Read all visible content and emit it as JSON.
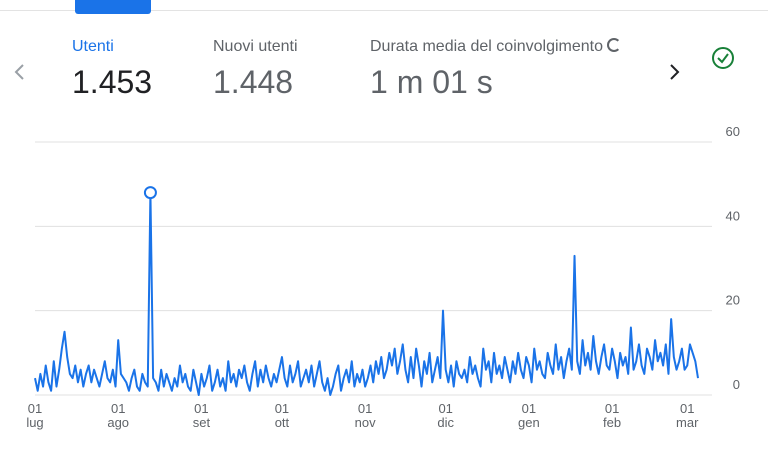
{
  "metrics": [
    {
      "label": "Utenti",
      "value": "1.453"
    },
    {
      "label": "Nuovi utenti",
      "value": "1.448"
    },
    {
      "label": "Durata media del coinvolgimento",
      "value": "1 m 01 s"
    }
  ],
  "chart_data": {
    "type": "line",
    "color": "#1a73e8",
    "grid": true,
    "highlighted_point": 43,
    "ylim": [
      0,
      60
    ],
    "yticks": [
      0,
      20,
      40,
      60
    ],
    "xlim": [
      0,
      247
    ],
    "xticks": [
      {
        "value": 0,
        "label": "01\nlug"
      },
      {
        "value": 31,
        "label": "01\nago"
      },
      {
        "value": 62,
        "label": "01\nset"
      },
      {
        "value": 92,
        "label": "01\nott"
      },
      {
        "value": 123,
        "label": "01\nnov"
      },
      {
        "value": 153,
        "label": "01\ndic"
      },
      {
        "value": 184,
        "label": "01\ngen"
      },
      {
        "value": 215,
        "label": "01\nfeb"
      },
      {
        "value": 243,
        "label": "01\nmar"
      }
    ],
    "values": [
      4,
      1,
      5,
      2,
      7,
      3,
      1,
      8,
      2,
      6,
      11,
      15,
      9,
      5,
      4,
      7,
      3,
      6,
      2,
      5,
      7,
      3,
      6,
      4,
      2,
      5,
      8,
      4,
      3,
      6,
      2,
      13,
      5,
      4,
      3,
      1,
      4,
      6,
      2,
      1,
      5,
      3,
      2,
      48,
      4,
      3,
      1,
      6,
      2,
      5,
      3,
      1,
      4,
      2,
      7,
      3,
      5,
      2,
      1,
      6,
      3,
      0,
      5,
      2,
      4,
      7,
      1,
      3,
      6,
      2,
      4,
      1,
      8,
      3,
      5,
      2,
      6,
      4,
      7,
      3,
      1,
      5,
      8,
      2,
      6,
      3,
      7,
      4,
      2,
      5,
      3,
      6,
      9,
      4,
      2,
      7,
      3,
      5,
      8,
      2,
      4,
      6,
      3,
      7,
      2,
      5,
      8,
      3,
      1,
      4,
      0,
      2,
      5,
      7,
      1,
      4,
      6,
      3,
      8,
      2,
      5,
      3,
      6,
      2,
      4,
      7,
      3,
      8,
      5,
      9,
      4,
      6,
      10,
      7,
      11,
      5,
      8,
      12,
      6,
      3,
      9,
      4,
      11,
      7,
      2,
      8,
      5,
      10,
      3,
      6,
      9,
      4,
      20,
      6,
      3,
      7,
      2,
      8,
      5,
      4,
      6,
      3,
      9,
      5,
      7,
      4,
      2,
      11,
      6,
      8,
      3,
      10,
      5,
      7,
      4,
      9,
      6,
      3,
      8,
      5,
      10,
      6,
      4,
      9,
      7,
      3,
      11,
      6,
      8,
      5,
      4,
      10,
      7,
      5,
      12,
      6,
      9,
      4,
      8,
      11,
      6,
      33,
      8,
      5,
      13,
      7,
      10,
      6,
      14,
      8,
      5,
      9,
      12,
      7,
      6,
      11,
      8,
      4,
      10,
      7,
      9,
      5,
      16,
      6,
      8,
      12,
      7,
      5,
      11,
      9,
      6,
      13,
      8,
      10,
      7,
      12,
      5,
      18,
      9,
      6,
      8,
      11,
      6,
      7,
      12,
      10,
      8,
      4
    ]
  }
}
